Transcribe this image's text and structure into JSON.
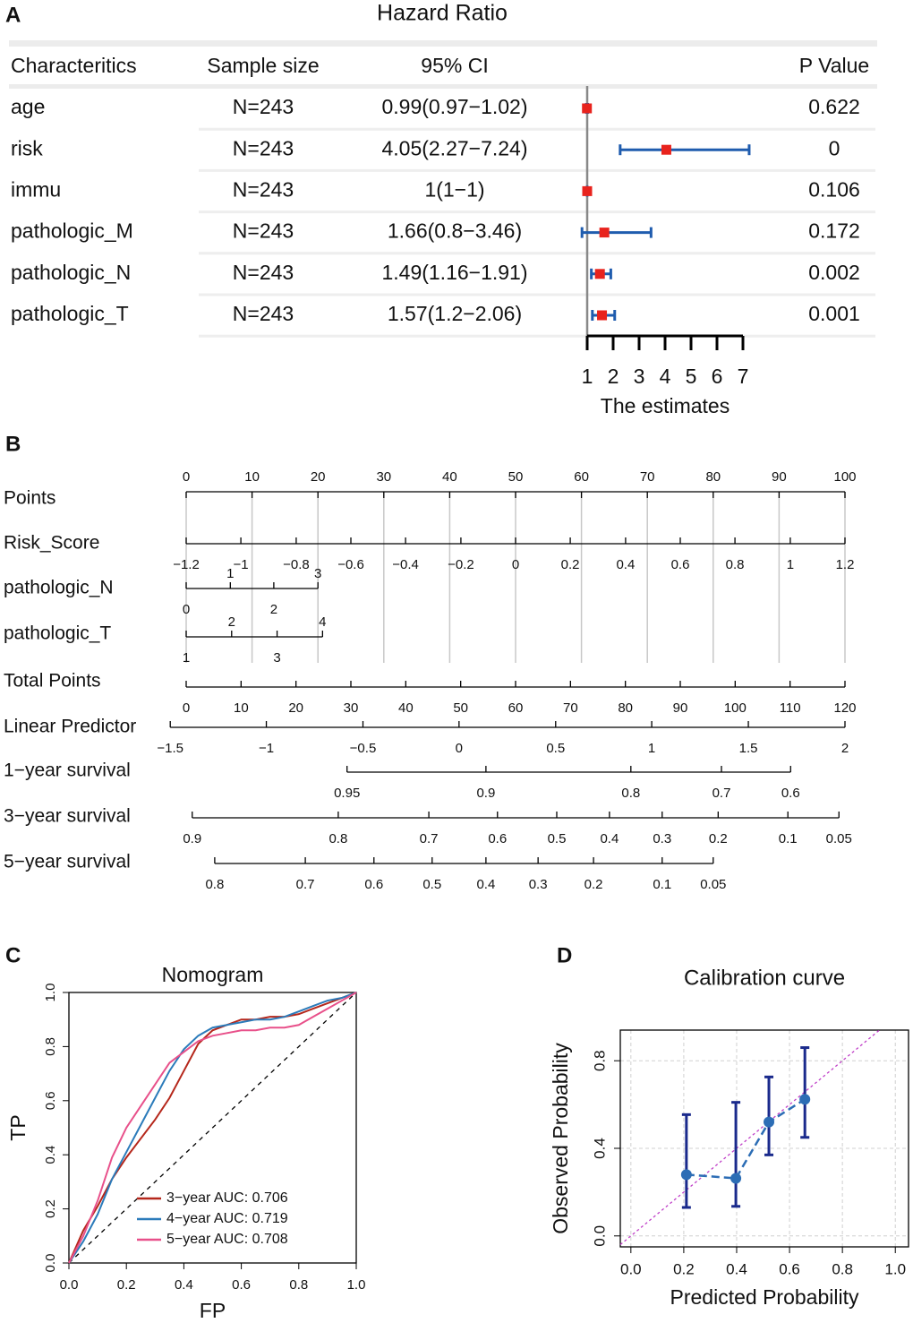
{
  "chart_data": [
    {
      "type": "forest",
      "label": "A",
      "title": "Hazard Ratio",
      "columns": [
        "Characteritics",
        "Sample size",
        "95% CI",
        "P Value"
      ],
      "categories": [
        "age",
        "risk",
        "immu",
        "pathologic_M",
        "pathologic_N",
        "pathologic_T"
      ],
      "sample_size": [
        "N=243",
        "N=243",
        "N=243",
        "N=243",
        "N=243",
        "N=243"
      ],
      "values": [
        0.99,
        4.05,
        1,
        1.66,
        1.49,
        1.57
      ],
      "lower": [
        0.97,
        2.27,
        1,
        0.8,
        1.16,
        1.2
      ],
      "upper": [
        1.02,
        7.24,
        1,
        3.46,
        1.91,
        2.06
      ],
      "value_labels": [
        "0.99(0.97−1.02)",
        "4.05(2.27−7.24)",
        "1(1−1)",
        "1.66(0.8−3.46)",
        "1.49(1.16−1.91)",
        "1.57(1.2−2.06)"
      ],
      "p_values": [
        0.622,
        0,
        0.106,
        0.172,
        0.002,
        0.001
      ],
      "xlabel": "The estimates",
      "xlim": [
        1,
        7
      ],
      "xticks": [
        1,
        2,
        3,
        4,
        5,
        6,
        7
      ],
      "ref_line": 1,
      "color": "#e8231d",
      "ci_color": "#1f5cae"
    },
    {
      "type": "nomogram",
      "label": "B",
      "rows": [
        {
          "name": "Points",
          "scale": "points",
          "labels": "above",
          "ticks": [
            0,
            10,
            20,
            30,
            40,
            50,
            60,
            70,
            80,
            90,
            100
          ]
        },
        {
          "name": "Risk_Score",
          "scale": "points",
          "labels": "below",
          "ticks": [
            {
              "value": -1.2,
              "label": "−1.2"
            },
            {
              "value": -1,
              "label": "−1"
            },
            {
              "value": -0.8,
              "label": "−0.8"
            },
            {
              "value": -0.6,
              "label": "−0.6"
            },
            {
              "value": -0.4,
              "label": "−0.4"
            },
            {
              "value": -0.2,
              "label": "−0.2"
            },
            0,
            0.2,
            0.4,
            0.6,
            0.8,
            1,
            1.2
          ],
          "points": [
            0,
            8.3,
            16.7,
            25,
            33.3,
            41.7,
            50,
            58.3,
            66.7,
            75,
            83.3,
            91.7,
            100
          ]
        },
        {
          "name": "pathologic_N",
          "scale": "points",
          "labels": "alternate",
          "ticks": [
            0,
            1,
            2,
            3
          ],
          "points": [
            0,
            6.7,
            13.3,
            20
          ]
        },
        {
          "name": "pathologic_T",
          "scale": "points",
          "labels": "alternate",
          "ticks": [
            1,
            2,
            3,
            4
          ],
          "points": [
            0,
            6.9,
            13.8,
            20.7
          ]
        },
        {
          "name": "Total Points",
          "scale": "total",
          "labels": "below",
          "ticks": [
            0,
            10,
            20,
            30,
            40,
            50,
            60,
            70,
            80,
            90,
            100,
            110,
            120
          ]
        },
        {
          "name": "Linear Predictor",
          "scale": "total",
          "labels": "below",
          "ticks": [
            {
              "value": -1.5,
              "label": "−1.5"
            },
            {
              "value": -1,
              "label": "−1"
            },
            {
              "value": -0.5,
              "label": "−0.5"
            },
            0,
            0.5,
            1,
            1.5,
            2
          ],
          "points": [
            -2.9,
            14.6,
            32.2,
            49.7,
            67.3,
            84.8,
            102.4,
            120
          ]
        },
        {
          "name": "1−year survival",
          "scale": "total",
          "labels": "below",
          "ticks": [
            0.95,
            0.9,
            0.8,
            0.7,
            0.6
          ],
          "points": [
            29.3,
            54.6,
            81,
            97.5,
            110.1
          ]
        },
        {
          "name": "3−year survival",
          "scale": "total",
          "labels": "below",
          "ticks": [
            0.9,
            0.8,
            0.7,
            0.6,
            0.5,
            0.4,
            0.3,
            0.2,
            0.1,
            0.05
          ],
          "points": [
            1.1,
            27.7,
            44.2,
            56.7,
            67.5,
            77.1,
            86.7,
            96.9,
            109.6,
            118.9
          ]
        },
        {
          "name": "5−year survival",
          "scale": "total",
          "labels": "below",
          "ticks": [
            0.8,
            0.7,
            0.6,
            0.5,
            0.4,
            0.3,
            0.2,
            0.1,
            0.05
          ],
          "points": [
            5.2,
            21.7,
            34.2,
            44.8,
            54.6,
            64.1,
            74.2,
            86.7,
            96
          ]
        }
      ]
    },
    {
      "type": "line",
      "label": "C",
      "title": "Nomogram",
      "xlabel": "FP",
      "ylabel": "TP",
      "x": [
        0,
        0.05,
        0.1,
        0.15,
        0.2,
        0.25,
        0.3,
        0.35,
        0.4,
        0.45,
        0.5,
        0.55,
        0.6,
        0.65,
        0.7,
        0.75,
        0.8,
        0.85,
        0.9,
        0.95,
        1
      ],
      "series": [
        {
          "name": "3−year AUC: 0.706",
          "color": "#b5271b",
          "values": [
            0,
            0.12,
            0.21,
            0.31,
            0.39,
            0.46,
            0.53,
            0.61,
            0.71,
            0.81,
            0.86,
            0.88,
            0.9,
            0.9,
            0.91,
            0.91,
            0.92,
            0.94,
            0.96,
            0.98,
            1
          ]
        },
        {
          "name": "4−year AUC: 0.719",
          "color": "#2b7bba",
          "values": [
            0,
            0.08,
            0.18,
            0.31,
            0.41,
            0.51,
            0.61,
            0.71,
            0.79,
            0.84,
            0.87,
            0.88,
            0.89,
            0.9,
            0.9,
            0.91,
            0.93,
            0.95,
            0.97,
            0.98,
            1
          ]
        },
        {
          "name": "5−year AUC: 0.708",
          "color": "#e8508a",
          "values": [
            0,
            0.1,
            0.23,
            0.39,
            0.5,
            0.58,
            0.66,
            0.74,
            0.78,
            0.82,
            0.84,
            0.85,
            0.86,
            0.86,
            0.87,
            0.87,
            0.88,
            0.91,
            0.94,
            0.97,
            1
          ]
        }
      ],
      "xlim": [
        0,
        1
      ],
      "ylim": [
        0,
        1
      ],
      "xticks": [
        {
          "value": 0,
          "label": "0.0"
        },
        0.2,
        0.4,
        0.6,
        0.8,
        {
          "value": 1,
          "label": "1.0"
        }
      ],
      "yticks": [
        {
          "value": 0,
          "label": "0.0"
        },
        0.2,
        0.4,
        0.6,
        0.8,
        {
          "value": 1,
          "label": "1.0"
        }
      ],
      "diagonal": true,
      "legend": "lower right"
    },
    {
      "type": "scatter",
      "label": "D",
      "title": "Calibration curve",
      "xlabel": "Predicted Probability",
      "ylabel": "Observed Probability",
      "x": [
        0.21,
        0.397,
        0.522,
        0.658
      ],
      "values": [
        0.28,
        0.263,
        0.52,
        0.624
      ],
      "lower": [
        0.13,
        0.135,
        0.37,
        0.45
      ],
      "upper": [
        0.554,
        0.61,
        0.726,
        0.86
      ],
      "xlim": [
        -0.04,
        1.05
      ],
      "ylim": [
        -0.05,
        0.94
      ],
      "xticks": [
        {
          "value": 0,
          "label": "0.0"
        },
        0.2,
        0.4,
        0.6,
        0.8,
        {
          "value": 1,
          "label": "1.0"
        }
      ],
      "yticks": [
        {
          "value": 0,
          "label": "0.0"
        },
        0.4,
        0.8
      ],
      "grid": true,
      "diagonal": true,
      "color": "#2c6db5",
      "error_color": "#1a2a8c"
    }
  ]
}
